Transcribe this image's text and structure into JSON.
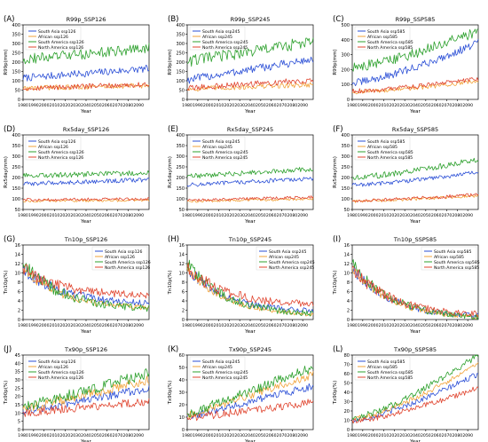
{
  "colors": {
    "South Asia": "#2b4fd6",
    "African": "#f2a33a",
    "South America": "#2ca02c",
    "North America": "#e0452f"
  },
  "chart_data": [
    {
      "type": "line",
      "panel": "(A)",
      "title": "R99p_SSP126",
      "xlabel": "Year",
      "ylabel": "R99p(mm)",
      "xlim": [
        1980,
        2100
      ],
      "ylim": [
        0,
        400
      ],
      "xticks": [
        1980,
        1990,
        2000,
        2010,
        2020,
        2030,
        2040,
        2050,
        2060,
        2070,
        2080,
        2090
      ],
      "yticks": [
        0,
        50,
        100,
        150,
        200,
        250,
        300,
        350,
        400
      ],
      "legend": "top-left",
      "series": [
        {
          "name": "South Asia ssp126",
          "region": "South Asia",
          "start": 115,
          "end": 165,
          "noise": 20
        },
        {
          "name": "African ssp126",
          "region": "African",
          "start": 60,
          "end": 75,
          "noise": 14
        },
        {
          "name": "South America ssp126",
          "region": "South America",
          "start": 215,
          "end": 275,
          "noise": 28
        },
        {
          "name": "North America ssp126",
          "region": "North America",
          "start": 60,
          "end": 80,
          "noise": 14
        }
      ]
    },
    {
      "type": "line",
      "panel": "(B)",
      "title": "R99p_SSP245",
      "xlabel": "Year",
      "ylabel": "R99p(mm)",
      "xlim": [
        1980,
        2100
      ],
      "ylim": [
        0,
        400
      ],
      "xticks": [
        1980,
        1990,
        2000,
        2010,
        2020,
        2030,
        2040,
        2050,
        2060,
        2070,
        2080,
        2090
      ],
      "yticks": [
        0,
        50,
        100,
        150,
        200,
        250,
        300,
        350,
        400
      ],
      "legend": "top-left",
      "series": [
        {
          "name": "South Asia ssp245",
          "region": "South Asia",
          "start": 105,
          "end": 215,
          "noise": 22
        },
        {
          "name": "African ssp245",
          "region": "African",
          "start": 55,
          "end": 80,
          "noise": 14
        },
        {
          "name": "South America ssp245",
          "region": "South America",
          "start": 205,
          "end": 310,
          "noise": 32
        },
        {
          "name": "North America ssp245",
          "region": "North America",
          "start": 60,
          "end": 105,
          "noise": 16
        }
      ]
    },
    {
      "type": "line",
      "panel": "(C)",
      "title": "R99p_SSP585",
      "xlabel": "Year",
      "ylabel": "R99p(mm)",
      "xlim": [
        1980,
        2100
      ],
      "ylim": [
        0,
        500
      ],
      "xticks": [
        1980,
        1990,
        2000,
        2010,
        2020,
        2030,
        2040,
        2050,
        2060,
        2070,
        2080,
        2090
      ],
      "yticks": [
        0,
        100,
        200,
        300,
        400,
        500
      ],
      "legend": "top-left",
      "series": [
        {
          "name": "South Asia ssp585",
          "region": "South Asia",
          "start": 110,
          "end": 380,
          "noise": 26
        },
        {
          "name": "African ssp585",
          "region": "African",
          "start": 50,
          "end": 120,
          "noise": 14
        },
        {
          "name": "South America ssp585",
          "region": "South America",
          "start": 215,
          "end": 460,
          "noise": 36
        },
        {
          "name": "North America ssp585",
          "region": "North America",
          "start": 55,
          "end": 140,
          "noise": 16
        }
      ]
    },
    {
      "type": "line",
      "panel": "(D)",
      "title": "Rx5day_SSP126",
      "xlabel": "Year",
      "ylabel": "Rx5day(mm)",
      "xlim": [
        1980,
        2100
      ],
      "ylim": [
        50,
        400
      ],
      "xticks": [
        1980,
        1990,
        2000,
        2010,
        2020,
        2030,
        2040,
        2050,
        2060,
        2070,
        2080,
        2090
      ],
      "yticks": [
        50,
        100,
        150,
        200,
        250,
        300,
        350,
        400
      ],
      "legend": "top-left",
      "series": [
        {
          "name": "South Asia ssp126",
          "region": "South Asia",
          "start": 170,
          "end": 190,
          "noise": 10
        },
        {
          "name": "African ssp126",
          "region": "African",
          "start": 90,
          "end": 93,
          "noise": 6
        },
        {
          "name": "South America ssp126",
          "region": "South America",
          "start": 208,
          "end": 222,
          "noise": 12
        },
        {
          "name": "North America ssp126",
          "region": "North America",
          "start": 95,
          "end": 100,
          "noise": 7
        }
      ]
    },
    {
      "type": "line",
      "panel": "(E)",
      "title": "Rx5day_SSP245",
      "xlabel": "Year",
      "ylabel": "Rx5day(mm)",
      "xlim": [
        1980,
        2100
      ],
      "ylim": [
        50,
        400
      ],
      "xticks": [
        1980,
        1990,
        2000,
        2010,
        2020,
        2030,
        2040,
        2050,
        2060,
        2070,
        2080,
        2090
      ],
      "yticks": [
        50,
        100,
        150,
        200,
        250,
        300,
        350,
        400
      ],
      "legend": "top-left",
      "series": [
        {
          "name": "South Asia ssp245",
          "region": "South Asia",
          "start": 165,
          "end": 195,
          "noise": 10
        },
        {
          "name": "African ssp245",
          "region": "African",
          "start": 88,
          "end": 100,
          "noise": 6
        },
        {
          "name": "South America ssp245",
          "region": "South America",
          "start": 205,
          "end": 240,
          "noise": 12
        },
        {
          "name": "North America ssp245",
          "region": "North America",
          "start": 92,
          "end": 108,
          "noise": 7
        }
      ]
    },
    {
      "type": "line",
      "panel": "(F)",
      "title": "Rx5day_SSP585",
      "xlabel": "Year",
      "ylabel": "Rx5day(mm)",
      "xlim": [
        1980,
        2100
      ],
      "ylim": [
        50,
        400
      ],
      "xticks": [
        1980,
        1990,
        2000,
        2010,
        2020,
        2030,
        2040,
        2050,
        2060,
        2070,
        2080,
        2090
      ],
      "yticks": [
        50,
        100,
        150,
        200,
        250,
        300,
        350,
        400
      ],
      "legend": "top-left",
      "series": [
        {
          "name": "South Asia ssp585",
          "region": "South Asia",
          "start": 165,
          "end": 225,
          "noise": 10
        },
        {
          "name": "African ssp585",
          "region": "African",
          "start": 88,
          "end": 115,
          "noise": 7
        },
        {
          "name": "South America ssp585",
          "region": "South America",
          "start": 200,
          "end": 285,
          "noise": 14
        },
        {
          "name": "North America ssp585",
          "region": "North America",
          "start": 92,
          "end": 120,
          "noise": 8
        }
      ]
    },
    {
      "type": "line",
      "panel": "(G)",
      "title": "Tn10p_SSP126",
      "xlabel": "Year",
      "ylabel": "Tn10p(%)",
      "xlim": [
        1980,
        2100
      ],
      "ylim": [
        0,
        16
      ],
      "xticks": [
        1980,
        1990,
        2000,
        2010,
        2020,
        2030,
        2040,
        2050,
        2060,
        2070,
        2080,
        2090
      ],
      "yticks": [
        0,
        2,
        4,
        6,
        8,
        10,
        12,
        14,
        16
      ],
      "legend": "top-right",
      "series": [
        {
          "name": "South Asia ssp126",
          "region": "South Asia",
          "start": 11,
          "end": 3.2,
          "noise": 1.5
        },
        {
          "name": "African ssp126",
          "region": "African",
          "start": 11,
          "end": 2.2,
          "noise": 1.2
        },
        {
          "name": "South America ssp126",
          "region": "South America",
          "start": 12,
          "end": 2.0,
          "noise": 1.6
        },
        {
          "name": "North America ssp126",
          "region": "North America",
          "start": 11,
          "end": 5.0,
          "noise": 1.6
        }
      ]
    },
    {
      "type": "line",
      "panel": "(H)",
      "title": "Tn10p_SSP245",
      "xlabel": "Year",
      "ylabel": "Tn10p(%)",
      "xlim": [
        1980,
        2100
      ],
      "ylim": [
        0,
        16
      ],
      "xticks": [
        1980,
        1990,
        2000,
        2010,
        2020,
        2030,
        2040,
        2050,
        2060,
        2070,
        2080,
        2090
      ],
      "yticks": [
        0,
        2,
        4,
        6,
        8,
        10,
        12,
        14,
        16
      ],
      "legend": "top-right",
      "series": [
        {
          "name": "South Asia ssp245",
          "region": "South Asia",
          "start": 11,
          "end": 1.5,
          "noise": 1.3
        },
        {
          "name": "African ssp245",
          "region": "African",
          "start": 11,
          "end": 0.7,
          "noise": 1.0
        },
        {
          "name": "South America ssp245",
          "region": "South America",
          "start": 12,
          "end": 0.8,
          "noise": 1.4
        },
        {
          "name": "North America ssp245",
          "region": "North America",
          "start": 11,
          "end": 3.0,
          "noise": 1.6
        }
      ]
    },
    {
      "type": "line",
      "panel": "(I)",
      "title": "Tn10p_SSP585",
      "xlabel": "Year",
      "ylabel": "Tn10p(%)",
      "xlim": [
        1980,
        2100
      ],
      "ylim": [
        0,
        16
      ],
      "xticks": [
        1980,
        1990,
        2000,
        2010,
        2020,
        2030,
        2040,
        2050,
        2060,
        2070,
        2080,
        2090
      ],
      "yticks": [
        0,
        2,
        4,
        6,
        8,
        10,
        12,
        14,
        16
      ],
      "legend": "top-right",
      "series": [
        {
          "name": "South Asia ssp585",
          "region": "South Asia",
          "start": 11,
          "end": 0.3,
          "noise": 1.3
        },
        {
          "name": "African ssp585",
          "region": "African",
          "start": 11,
          "end": 0.1,
          "noise": 1.0
        },
        {
          "name": "South America ssp585",
          "region": "South America",
          "start": 12,
          "end": 0.1,
          "noise": 1.4
        },
        {
          "name": "North America ssp585",
          "region": "North America",
          "start": 11,
          "end": 0.8,
          "noise": 1.5
        }
      ]
    },
    {
      "type": "line",
      "panel": "(J)",
      "title": "Tx90p_SSP126",
      "xlabel": "Year",
      "ylabel": "Tx90p(%)",
      "xlim": [
        1980,
        2100
      ],
      "ylim": [
        0,
        45
      ],
      "xticks": [
        1980,
        1990,
        2000,
        2010,
        2020,
        2030,
        2040,
        2050,
        2060,
        2070,
        2080,
        2090
      ],
      "yticks": [
        0,
        5,
        10,
        15,
        20,
        25,
        30,
        35,
        40,
        45
      ],
      "legend": "top-left",
      "series": [
        {
          "name": "South Asia ssp126",
          "region": "South Asia",
          "start": 11,
          "end": 25,
          "noise": 2.5
        },
        {
          "name": "African ssp126",
          "region": "African",
          "start": 12,
          "end": 30,
          "noise": 2.8
        },
        {
          "name": "South America ssp126",
          "region": "South America",
          "start": 13,
          "end": 34,
          "noise": 3.5
        },
        {
          "name": "North America ssp126",
          "region": "North America",
          "start": 10,
          "end": 17,
          "noise": 2.5
        }
      ]
    },
    {
      "type": "line",
      "panel": "(K)",
      "title": "Tx90p_SSP245",
      "xlabel": "Year",
      "ylabel": "Tx90p(%)",
      "xlim": [
        1980,
        2100
      ],
      "ylim": [
        0,
        60
      ],
      "xticks": [
        1980,
        1990,
        2000,
        2010,
        2020,
        2030,
        2040,
        2050,
        2060,
        2070,
        2080,
        2090
      ],
      "yticks": [
        0,
        10,
        20,
        30,
        40,
        50,
        60
      ],
      "legend": "top-left",
      "series": [
        {
          "name": "South Asia ssp245",
          "region": "South Asia",
          "start": 10,
          "end": 35,
          "noise": 3
        },
        {
          "name": "African ssp245",
          "region": "African",
          "start": 11,
          "end": 44,
          "noise": 3
        },
        {
          "name": "South America ssp245",
          "region": "South America",
          "start": 12,
          "end": 50,
          "noise": 4
        },
        {
          "name": "North America ssp245",
          "region": "North America",
          "start": 9,
          "end": 22,
          "noise": 3
        }
      ]
    },
    {
      "type": "line",
      "panel": "(L)",
      "title": "Tx90p_SSP585",
      "xlabel": "Year",
      "ylabel": "Tx90p(%)",
      "xlim": [
        1980,
        2100
      ],
      "ylim": [
        0,
        80
      ],
      "xticks": [
        1980,
        1990,
        2000,
        2010,
        2020,
        2030,
        2040,
        2050,
        2060,
        2070,
        2080,
        2090
      ],
      "yticks": [
        0,
        10,
        20,
        30,
        40,
        50,
        60,
        70,
        80
      ],
      "legend": "top-left",
      "series": [
        {
          "name": "South Asia ssp585",
          "region": "South Asia",
          "start": 10,
          "end": 60,
          "noise": 3
        },
        {
          "name": "African ssp585",
          "region": "African",
          "start": 11,
          "end": 70,
          "noise": 3
        },
        {
          "name": "South America ssp585",
          "region": "South America",
          "start": 12,
          "end": 80,
          "noise": 3.5
        },
        {
          "name": "North America ssp585",
          "region": "North America",
          "start": 9,
          "end": 45,
          "noise": 3
        }
      ]
    }
  ]
}
